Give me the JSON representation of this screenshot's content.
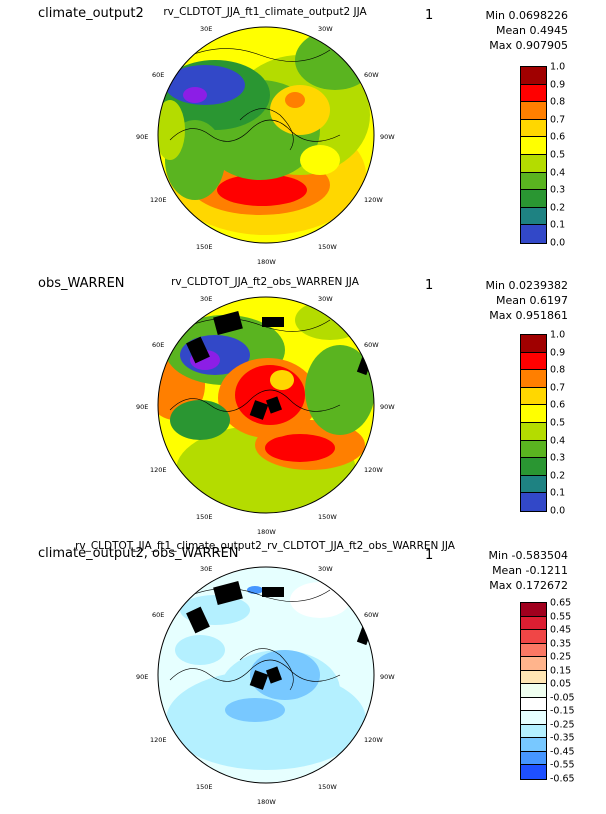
{
  "panels": [
    {
      "left_label": "climate_output2",
      "title": "rv_CLDTOT_JJA_ft1_climate_output2  JJA",
      "one": "1",
      "stats": [
        "Min 0.0698226",
        "Mean 0.4945",
        "Max 0.907905"
      ],
      "colorbar": {
        "ticks": [
          "1.0",
          "0.9",
          "0.8",
          "0.7",
          "0.6",
          "0.5",
          "0.4",
          "0.3",
          "0.2",
          "0.1",
          "0.0"
        ],
        "colors": [
          "#a00000",
          "#ff0000",
          "#ff7f00",
          "#ffd700",
          "#ffff00",
          "#b4dc00",
          "#5ab420",
          "#2a9632",
          "#1e8282",
          "#3248c8",
          "#8c1ee6"
        ]
      },
      "lon_labels": [
        "30E",
        "30W",
        "60E",
        "60W",
        "90E",
        "90W",
        "120E",
        "120W",
        "150E",
        "150W",
        "180W"
      ]
    },
    {
      "left_label": "obs_WARREN",
      "title": "rv_CLDTOT_JJA_ft2_obs_WARREN  JJA",
      "one": "1",
      "stats": [
        "Min 0.0239382",
        "Mean 0.6197",
        "Max 0.951861"
      ],
      "colorbar": {
        "ticks": [
          "1.0",
          "0.9",
          "0.8",
          "0.7",
          "0.6",
          "0.5",
          "0.4",
          "0.3",
          "0.2",
          "0.1",
          "0.0"
        ],
        "colors": [
          "#a00000",
          "#ff0000",
          "#ff7f00",
          "#ffd700",
          "#ffff00",
          "#b4dc00",
          "#5ab420",
          "#2a9632",
          "#1e8282",
          "#3248c8",
          "#8c1ee6"
        ]
      },
      "lon_labels": [
        "30E",
        "30W",
        "60E",
        "60W",
        "90E",
        "90W",
        "120E",
        "120W",
        "150E",
        "150W",
        "180W"
      ]
    },
    {
      "left_label": "climate_output2, obs_WARREN",
      "title": "rv_CLDTOT_JJA_ft1_climate_output2_rv_CLDTOT_JJA_ft2_obs_WARREN  JJA",
      "one": "1",
      "stats": [
        "Min -0.583504",
        "Mean -0.1211",
        "Max 0.172672"
      ],
      "colorbar": {
        "ticks": [
          "0.65",
          "0.55",
          "0.45",
          "0.35",
          "0.25",
          "0.15",
          "0.05",
          "-0.05",
          "-0.15",
          "-0.25",
          "-0.35",
          "-0.45",
          "-0.55",
          "-0.65"
        ],
        "colors": [
          "#a0001e",
          "#dc1e32",
          "#f04646",
          "#fa7864",
          "#ffb48c",
          "#ffe6b4",
          "#f0fff0",
          "#ffffff",
          "#e6ffff",
          "#b4f0ff",
          "#78c8ff",
          "#4696ff",
          "#1e50ff",
          "#0a14c8"
        ]
      },
      "lon_labels": [
        "30E",
        "30W",
        "60E",
        "60W",
        "90E",
        "90W",
        "120E",
        "120W",
        "150E",
        "150W",
        "180W"
      ]
    }
  ]
}
